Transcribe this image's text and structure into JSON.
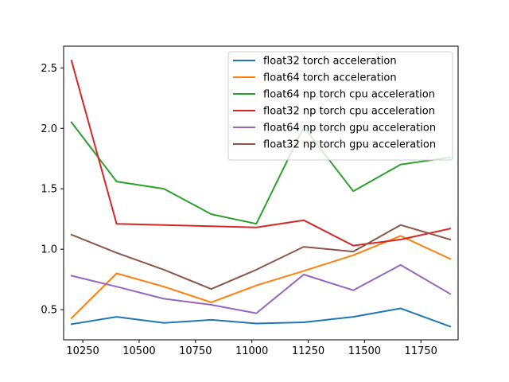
{
  "chart_data": {
    "type": "line",
    "title": "",
    "xlabel": "",
    "ylabel": "",
    "x": [
      10200,
      10400,
      10610,
      10820,
      11020,
      11230,
      11450,
      11660,
      11880
    ],
    "xlim": [
      10165,
      11915
    ],
    "ylim": [
      0.25,
      2.68
    ],
    "xticks": [
      10250,
      10500,
      10750,
      11000,
      11250,
      11500,
      11750
    ],
    "yticks": [
      0.5,
      1.0,
      1.5,
      2.0,
      2.5
    ],
    "ytick_labels": [
      "0.5",
      "1.0",
      "1.5",
      "2.0",
      "2.5"
    ],
    "grid": false,
    "legend_position": "upper right",
    "series": [
      {
        "name": "float32 torch acceleration",
        "color": "#1f77b4",
        "values": [
          0.38,
          0.44,
          0.39,
          0.415,
          0.385,
          0.395,
          0.44,
          0.51,
          0.36
        ]
      },
      {
        "name": "float64 torch acceleration",
        "color": "#ff7f0e",
        "values": [
          0.43,
          0.8,
          0.69,
          0.56,
          0.7,
          0.82,
          0.95,
          1.11,
          0.92
        ]
      },
      {
        "name": "float64 np torch cpu acceleration",
        "color": "#2ca02c",
        "values": [
          2.05,
          1.56,
          1.5,
          1.29,
          1.21,
          2.01,
          1.48,
          1.7,
          1.76
        ]
      },
      {
        "name": "float32 np torch cpu acceleration",
        "color": "#d62728",
        "values": [
          2.56,
          1.21,
          1.2,
          1.19,
          1.18,
          1.24,
          1.03,
          1.08,
          1.17
        ]
      },
      {
        "name": "float64 np torch gpu acceleration",
        "color": "#9467bd",
        "values": [
          0.78,
          0.69,
          0.59,
          0.54,
          0.47,
          0.79,
          0.66,
          0.87,
          0.63
        ]
      },
      {
        "name": "float32 np torch gpu acceleration",
        "color": "#8c564b",
        "values": [
          1.12,
          0.97,
          0.83,
          0.67,
          0.83,
          1.02,
          0.98,
          1.2,
          1.08
        ]
      }
    ]
  }
}
